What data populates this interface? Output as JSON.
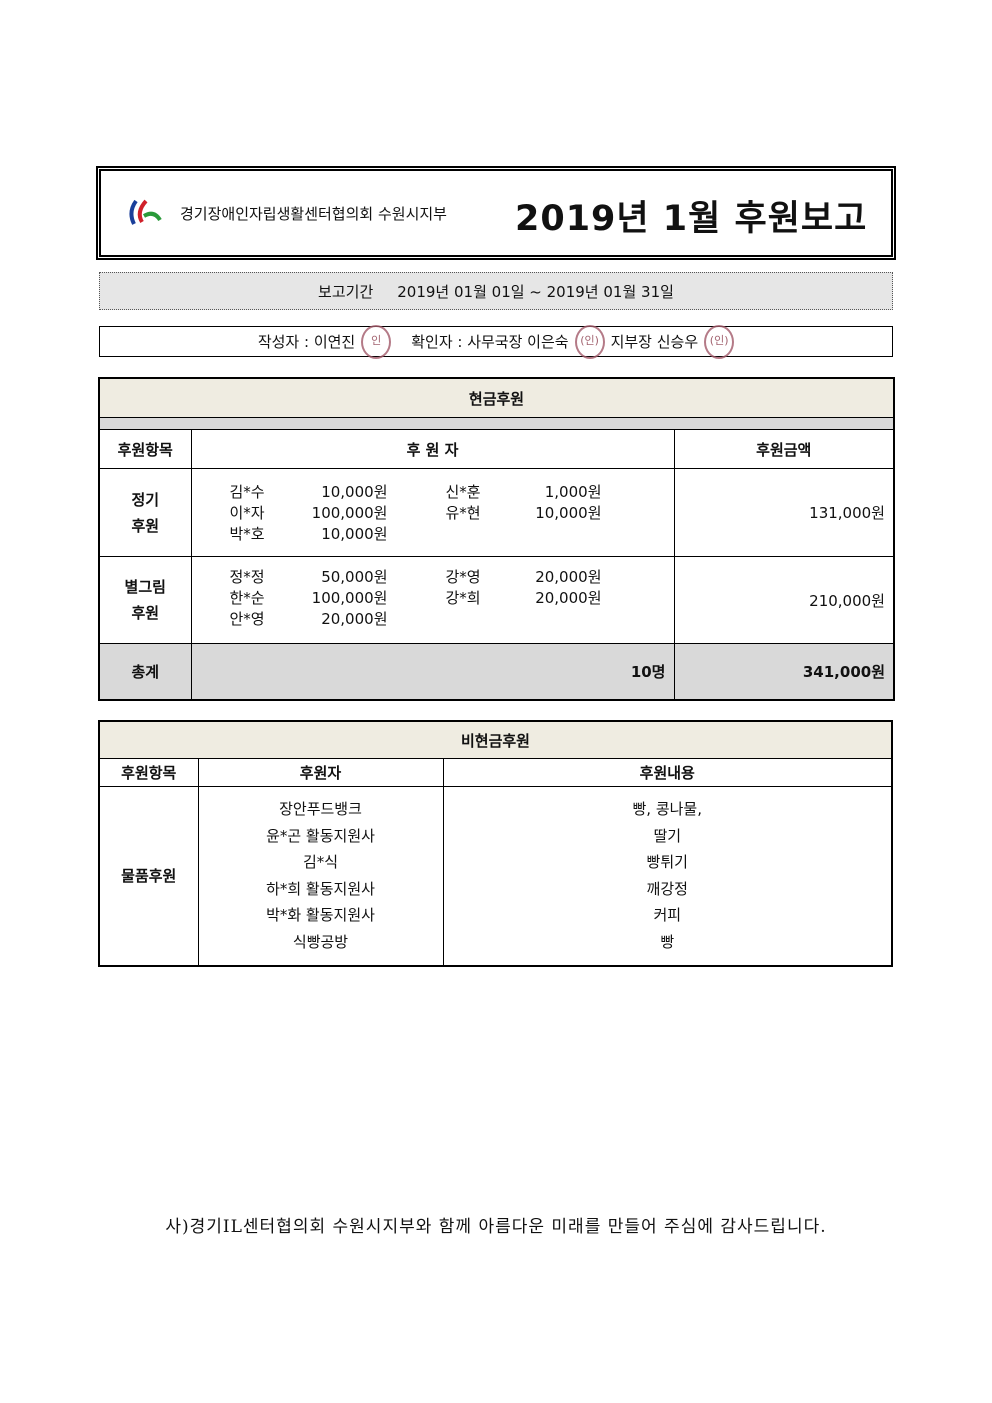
{
  "header": {
    "org_name": "경기장애인자립생활센터협의회 수원시지부",
    "title": "2019년 1월 후원보고",
    "logo_colors": [
      "#1a3f9a",
      "#d0202a",
      "#2a9a3a"
    ]
  },
  "period": {
    "label": "보고기간",
    "value": "2019년 01월 01일 ~ 2019년 01월 31일"
  },
  "signers": {
    "author_label": "작성자 : 이연진",
    "author_seal": "인",
    "confirm_label": "확인자 : 사무국장 이은숙",
    "confirm_seal": "(인)",
    "branch_label": "지부장 신승우",
    "branch_seal": "(인)"
  },
  "cash": {
    "title": "현금후원",
    "headers": [
      "후원항목",
      "후 원 자",
      "후원금액"
    ],
    "rows": [
      {
        "category": [
          "정기",
          "후원"
        ],
        "donors": [
          [
            "김*수",
            "10,000원"
          ],
          [
            "이*자",
            "100,000원"
          ],
          [
            "박*호",
            "10,000원"
          ],
          [
            "신*훈",
            "1,000원"
          ],
          [
            "유*현",
            "10,000원"
          ]
        ],
        "amount": "131,000원"
      },
      {
        "category": [
          "별그림",
          "후원"
        ],
        "donors": [
          [
            "정*정",
            "50,000원"
          ],
          [
            "한*순",
            "100,000원"
          ],
          [
            "안*영",
            "20,000원"
          ],
          [
            "강*영",
            "20,000원"
          ],
          [
            "강*희",
            "20,000원"
          ]
        ],
        "amount": "210,000원"
      }
    ],
    "total": {
      "label": "총계",
      "count": "10명",
      "amount": "341,000원"
    }
  },
  "noncash": {
    "title": "비현금후원",
    "headers": [
      "후원항목",
      "후원자",
      "후원내용"
    ],
    "category": "물품후원",
    "donors": [
      "장안푸드뱅크",
      "윤*곤 활동지원사",
      "김*식",
      "하*희 활동지원사",
      "박*화 활동지원사",
      "식빵공방"
    ],
    "items": [
      "빵, 콩나물,",
      "딸기",
      "빵튀기",
      "깨강정",
      "커피",
      "빵"
    ]
  },
  "footer": "사)경기IL센터협의회 수원시지부와 함께 아름다운 미래를 만들어 주심에 감사드립니다."
}
